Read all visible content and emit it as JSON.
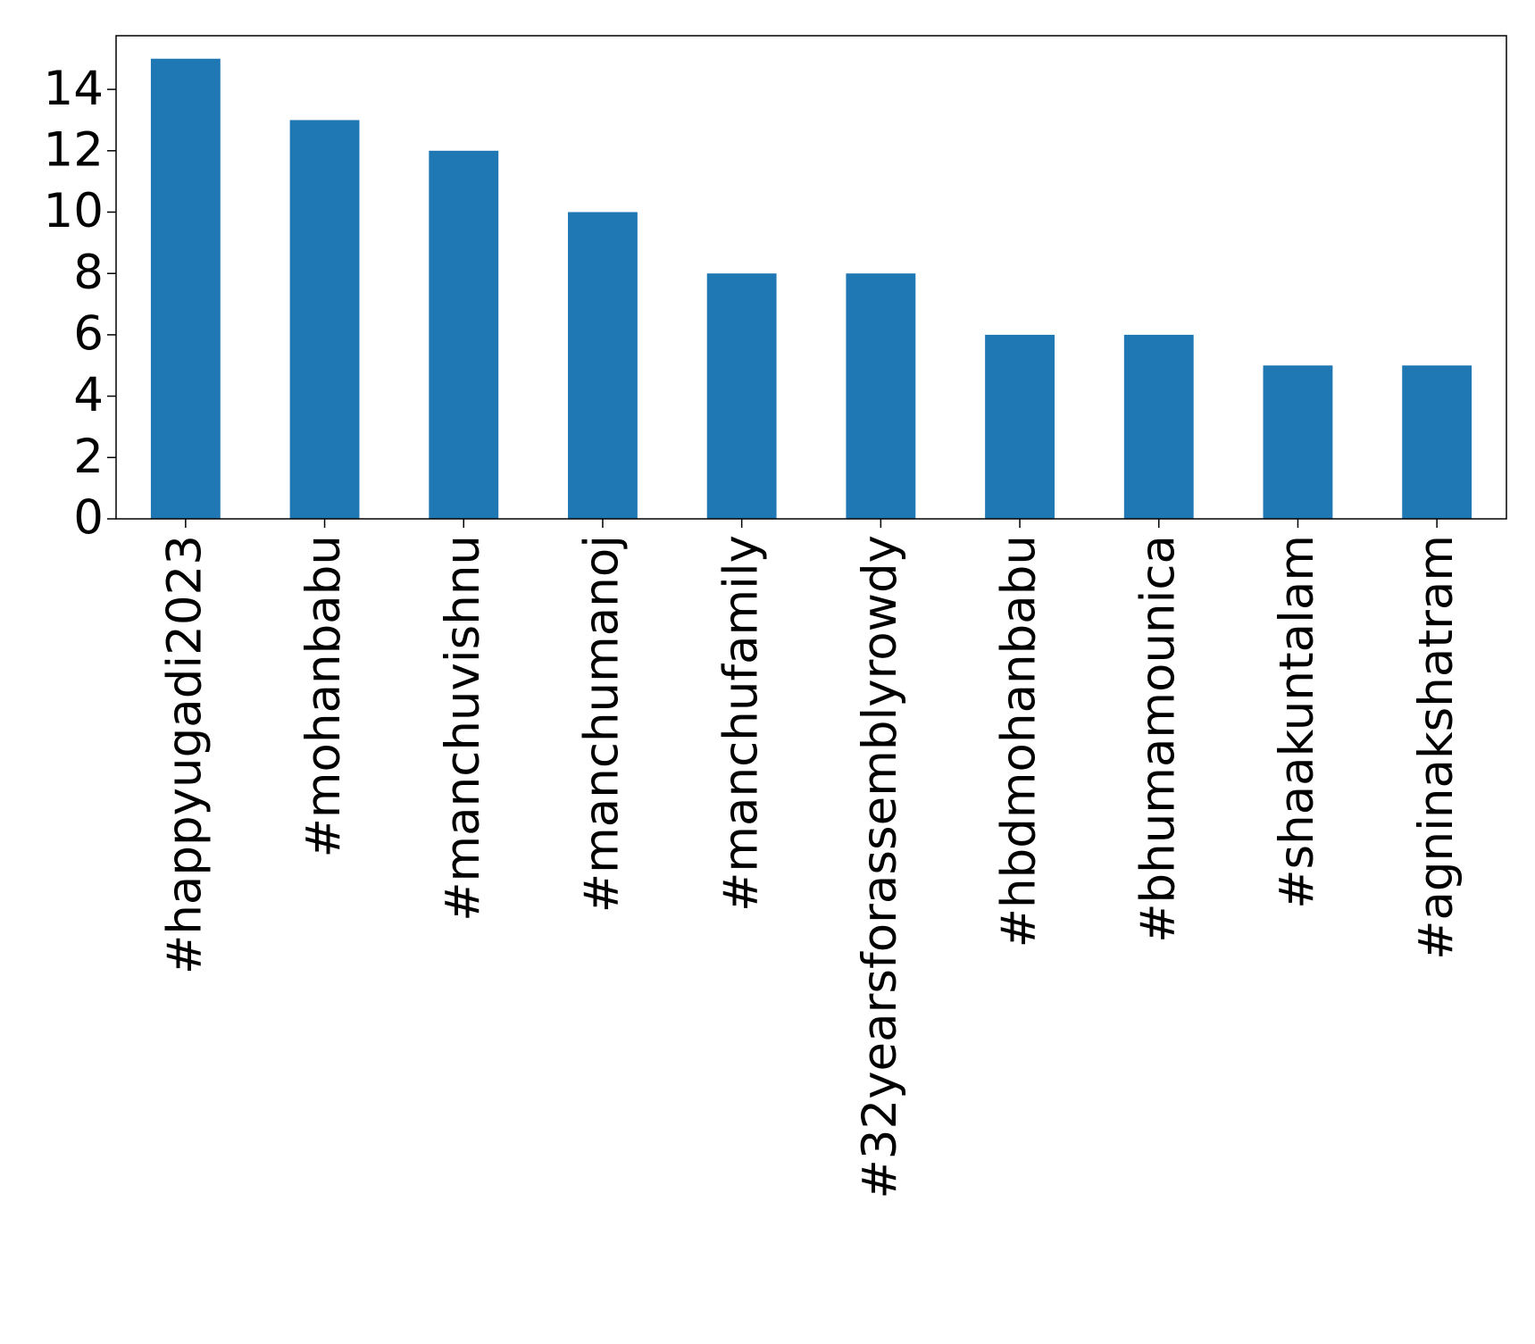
{
  "chart_data": {
    "type": "bar",
    "categories": [
      "#happyugadi2023",
      "#mohanbabu",
      "#manchuvishnu",
      "#manchumanoj",
      "#manchufamily",
      "#32yearsforassemblyrowdy",
      "#hbdmohanbabu",
      "#bhumamounica",
      "#shaakuntalam",
      "#agninakshatram"
    ],
    "values": [
      15,
      13,
      12,
      10,
      8,
      8,
      6,
      6,
      5,
      5
    ],
    "color": "#1f77b4",
    "ylim": [
      0,
      15.75
    ],
    "yticks": [
      0,
      2,
      4,
      6,
      8,
      10,
      12,
      14
    ],
    "grid": false
  }
}
